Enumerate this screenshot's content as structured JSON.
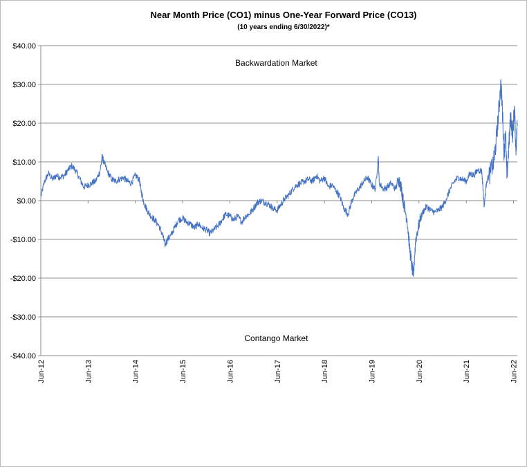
{
  "chart_data": {
    "type": "line",
    "title": "Near Month Price (CO1) minus One-Year Forward Price (CO13)",
    "subtitle": "(10 years ending  6/30/2022)*",
    "xlabel": "",
    "ylabel": "",
    "ylim": [
      -40,
      40
    ],
    "xlim": [
      2012.42,
      2022.5
    ],
    "grid": true,
    "legend": "none",
    "x_ticks": [
      {
        "value": 2012.42,
        "label": "Jun-12"
      },
      {
        "value": 2013.42,
        "label": "Jun-13"
      },
      {
        "value": 2014.42,
        "label": "Jun-14"
      },
      {
        "value": 2015.42,
        "label": "Jun-15"
      },
      {
        "value": 2016.42,
        "label": "Jun-16"
      },
      {
        "value": 2017.42,
        "label": "Jun-17"
      },
      {
        "value": 2018.42,
        "label": "Jun-18"
      },
      {
        "value": 2019.42,
        "label": "Jun-19"
      },
      {
        "value": 2020.42,
        "label": "Jun-20"
      },
      {
        "value": 2021.42,
        "label": "Jun-21"
      },
      {
        "value": 2022.42,
        "label": "Jun-22"
      }
    ],
    "y_ticks": [
      {
        "value": 40,
        "label": "$40.00"
      },
      {
        "value": 30,
        "label": "$30.00"
      },
      {
        "value": 20,
        "label": "$20.00"
      },
      {
        "value": 10,
        "label": "$10.00"
      },
      {
        "value": 0,
        "label": "$0.00"
      },
      {
        "value": -10,
        "label": "-$10.00"
      },
      {
        "value": -20,
        "label": "-$20.00"
      },
      {
        "value": -30,
        "label": "-$30.00"
      },
      {
        "value": -40,
        "label": "-$40.00"
      }
    ],
    "annotations": [
      {
        "text": "Backwardation Market",
        "x": 2017.4,
        "y": 35.5
      },
      {
        "text": "Contango Market",
        "x": 2017.4,
        "y": -35.5
      }
    ],
    "series": [
      {
        "color": "#4472c4",
        "points": [
          [
            2012.42,
            1.0
          ],
          [
            2012.5,
            5.0
          ],
          [
            2012.58,
            7.0
          ],
          [
            2012.67,
            5.5
          ],
          [
            2012.75,
            6.5
          ],
          [
            2012.83,
            6.0
          ],
          [
            2012.92,
            6.5
          ],
          [
            2013.0,
            8.0
          ],
          [
            2013.08,
            9.0
          ],
          [
            2013.17,
            7.5
          ],
          [
            2013.25,
            5.5
          ],
          [
            2013.33,
            3.5
          ],
          [
            2013.42,
            4.0
          ],
          [
            2013.5,
            4.5
          ],
          [
            2013.58,
            5.0
          ],
          [
            2013.67,
            7.5
          ],
          [
            2013.72,
            11.5
          ],
          [
            2013.75,
            10.0
          ],
          [
            2013.83,
            7.5
          ],
          [
            2013.92,
            5.5
          ],
          [
            2014.0,
            5.0
          ],
          [
            2014.08,
            5.5
          ],
          [
            2014.17,
            6.0
          ],
          [
            2014.25,
            5.0
          ],
          [
            2014.33,
            4.5
          ],
          [
            2014.42,
            6.5
          ],
          [
            2014.5,
            5.5
          ],
          [
            2014.55,
            2.0
          ],
          [
            2014.6,
            -0.5
          ],
          [
            2014.67,
            -2.5
          ],
          [
            2014.75,
            -4.0
          ],
          [
            2014.83,
            -5.0
          ],
          [
            2014.92,
            -6.5
          ],
          [
            2015.0,
            -9.0
          ],
          [
            2015.05,
            -11.5
          ],
          [
            2015.1,
            -10.0
          ],
          [
            2015.17,
            -9.0
          ],
          [
            2015.25,
            -7.0
          ],
          [
            2015.33,
            -5.0
          ],
          [
            2015.42,
            -4.5
          ],
          [
            2015.5,
            -5.5
          ],
          [
            2015.58,
            -6.0
          ],
          [
            2015.67,
            -7.0
          ],
          [
            2015.75,
            -6.0
          ],
          [
            2015.83,
            -7.0
          ],
          [
            2015.92,
            -7.5
          ],
          [
            2016.0,
            -8.5
          ],
          [
            2016.08,
            -7.5
          ],
          [
            2016.17,
            -6.5
          ],
          [
            2016.25,
            -5.0
          ],
          [
            2016.33,
            -3.5
          ],
          [
            2016.42,
            -4.0
          ],
          [
            2016.5,
            -5.0
          ],
          [
            2016.58,
            -4.0
          ],
          [
            2016.67,
            -5.5
          ],
          [
            2016.75,
            -4.0
          ],
          [
            2016.83,
            -3.5
          ],
          [
            2016.92,
            -2.0
          ],
          [
            2017.0,
            -0.5
          ],
          [
            2017.08,
            0.0
          ],
          [
            2017.17,
            -0.5
          ],
          [
            2017.25,
            -1.0
          ],
          [
            2017.33,
            -2.0
          ],
          [
            2017.42,
            -2.5
          ],
          [
            2017.5,
            -1.0
          ],
          [
            2017.58,
            0.5
          ],
          [
            2017.67,
            1.5
          ],
          [
            2017.75,
            3.0
          ],
          [
            2017.83,
            4.0
          ],
          [
            2017.92,
            4.5
          ],
          [
            2018.0,
            5.0
          ],
          [
            2018.08,
            5.5
          ],
          [
            2018.17,
            5.0
          ],
          [
            2018.25,
            6.5
          ],
          [
            2018.33,
            5.0
          ],
          [
            2018.42,
            6.0
          ],
          [
            2018.5,
            3.5
          ],
          [
            2018.58,
            4.0
          ],
          [
            2018.67,
            2.5
          ],
          [
            2018.75,
            1.0
          ],
          [
            2018.83,
            -2.0
          ],
          [
            2018.92,
            -3.5
          ],
          [
            2019.0,
            0.0
          ],
          [
            2019.08,
            2.0
          ],
          [
            2019.17,
            3.5
          ],
          [
            2019.25,
            5.0
          ],
          [
            2019.33,
            6.0
          ],
          [
            2019.42,
            4.0
          ],
          [
            2019.5,
            3.0
          ],
          [
            2019.56,
            11.5
          ],
          [
            2019.58,
            4.5
          ],
          [
            2019.67,
            3.0
          ],
          [
            2019.75,
            3.5
          ],
          [
            2019.83,
            4.5
          ],
          [
            2019.92,
            3.0
          ],
          [
            2020.0,
            5.5
          ],
          [
            2020.05,
            3.0
          ],
          [
            2020.1,
            -1.0
          ],
          [
            2020.17,
            -5.0
          ],
          [
            2020.22,
            -12.0
          ],
          [
            2020.27,
            -17.0
          ],
          [
            2020.3,
            -19.5
          ],
          [
            2020.35,
            -10.0
          ],
          [
            2020.42,
            -6.0
          ],
          [
            2020.5,
            -3.0
          ],
          [
            2020.58,
            -1.5
          ],
          [
            2020.67,
            -2.5
          ],
          [
            2020.75,
            -3.0
          ],
          [
            2020.83,
            -2.5
          ],
          [
            2020.92,
            -1.5
          ],
          [
            2021.0,
            0.5
          ],
          [
            2021.08,
            3.0
          ],
          [
            2021.17,
            5.0
          ],
          [
            2021.25,
            6.0
          ],
          [
            2021.33,
            5.5
          ],
          [
            2021.42,
            5.0
          ],
          [
            2021.5,
            7.0
          ],
          [
            2021.58,
            6.5
          ],
          [
            2021.67,
            8.0
          ],
          [
            2021.75,
            7.5
          ],
          [
            2021.8,
            -1.5
          ],
          [
            2021.85,
            5.0
          ],
          [
            2021.92,
            7.0
          ],
          [
            2022.0,
            10.0
          ],
          [
            2022.05,
            15.0
          ],
          [
            2022.1,
            22.0
          ],
          [
            2022.15,
            30.0
          ],
          [
            2022.18,
            25.0
          ],
          [
            2022.22,
            12.0
          ],
          [
            2022.25,
            18.0
          ],
          [
            2022.28,
            6.0
          ],
          [
            2022.32,
            14.0
          ],
          [
            2022.36,
            22.0
          ],
          [
            2022.4,
            17.0
          ],
          [
            2022.44,
            24.0
          ],
          [
            2022.47,
            13.0
          ],
          [
            2022.5,
            20.0
          ]
        ]
      }
    ]
  }
}
